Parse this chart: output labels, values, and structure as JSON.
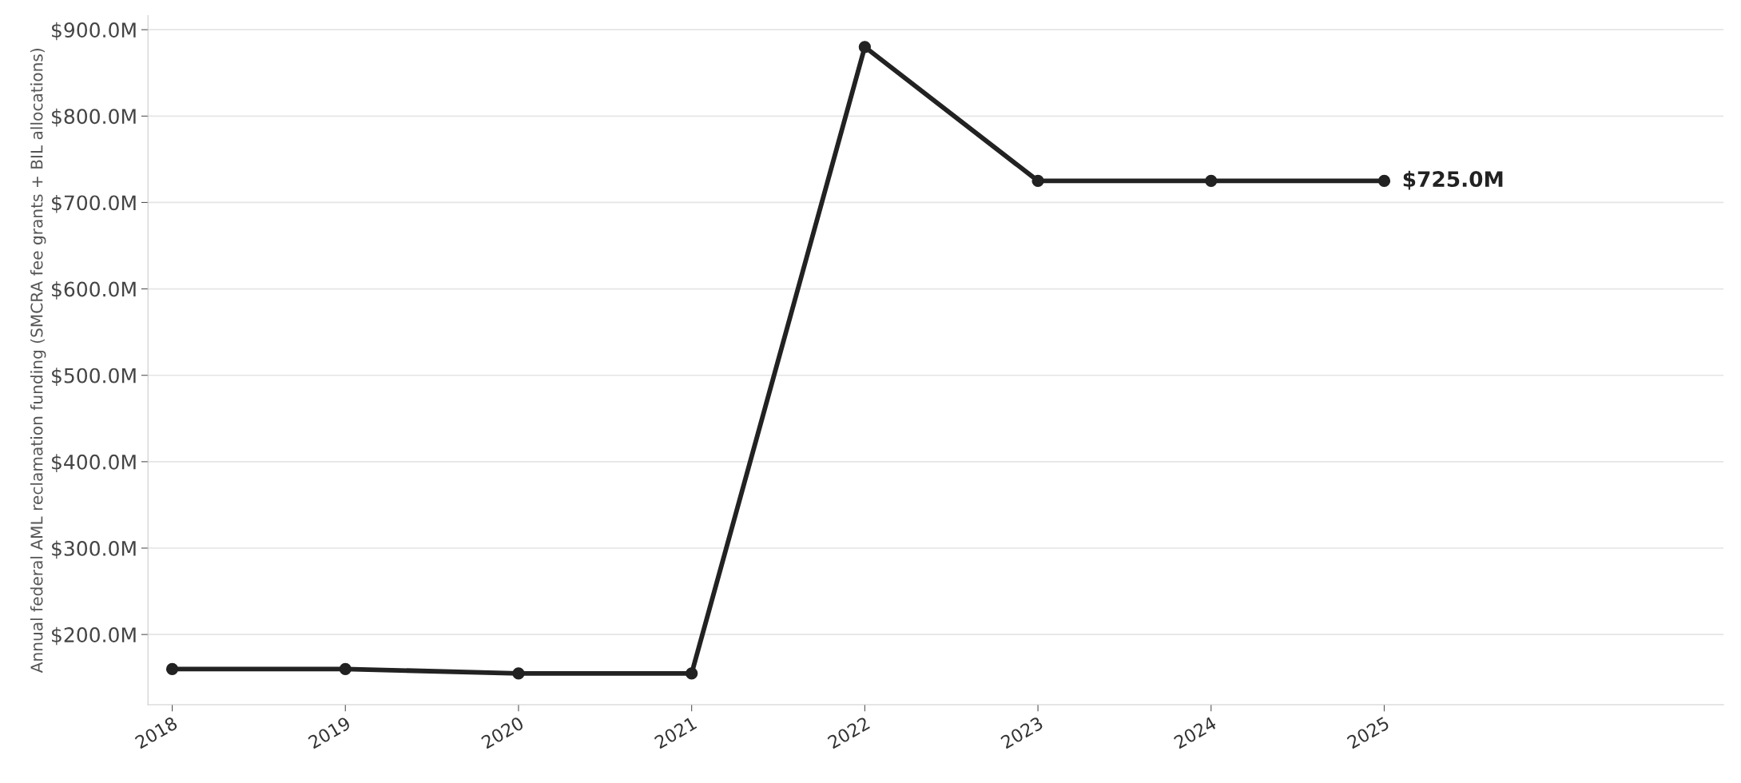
{
  "chart_data": {
    "type": "line",
    "ylabel": "Annual federal AML reclamation funding (SMCRA fee grants + BIL allocations)",
    "x": [
      2018,
      2019,
      2020,
      2021,
      2022,
      2023,
      2024,
      2025
    ],
    "series": [
      {
        "color": "#222222",
        "values": [
          160,
          160,
          155,
          155,
          880,
          725,
          725,
          725
        ]
      }
    ],
    "xlim": [
      2017.86,
      2026.96
    ],
    "xticks": [
      2018,
      2019,
      2020,
      2021,
      2022,
      2023,
      2024,
      2025
    ],
    "ylim": [
      118.75,
      916.25
    ],
    "yticks": [
      {
        "value": 200,
        "label": "$200.0M"
      },
      {
        "value": 300,
        "label": "$300.0M"
      },
      {
        "value": 400,
        "label": "$400.0M"
      },
      {
        "value": 500,
        "label": "$500.0M"
      },
      {
        "value": 600,
        "label": "$600.0M"
      },
      {
        "value": 700,
        "label": "$700.0M"
      },
      {
        "value": 800,
        "label": "$800.0M"
      },
      {
        "value": 900,
        "label": "$900.0M"
      }
    ],
    "annotations": [
      {
        "text": "$725.0M",
        "x": 2025,
        "y": 725
      }
    ],
    "grid": "y",
    "marker": "circle",
    "line_style": "solid",
    "legend": false
  }
}
